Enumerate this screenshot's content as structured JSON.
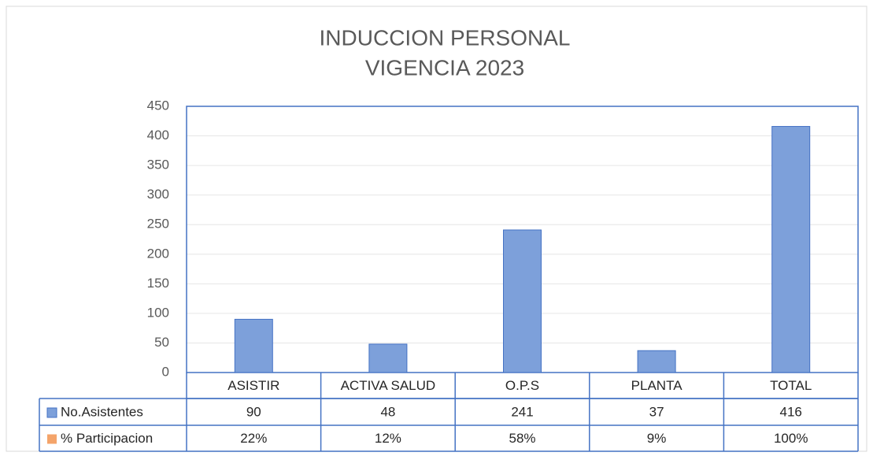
{
  "chart_data": {
    "type": "bar",
    "title": [
      "INDUCCION PERSONAL",
      "VIGENCIA 2023"
    ],
    "categories": [
      "ASISTIR",
      "ACTIVA SALUD",
      "O.P.S",
      "PLANTA",
      "TOTAL"
    ],
    "series": [
      {
        "name": "No.Asistentes",
        "color": "#7da0da",
        "values": [
          90,
          48,
          241,
          37,
          416
        ]
      },
      {
        "name": "% Participacion",
        "color": "#f4a46a",
        "values": [
          22,
          12,
          58,
          9,
          100
        ],
        "value_labels": [
          "22%",
          "12%",
          "58%",
          "9%",
          "100%"
        ]
      }
    ],
    "ylim": [
      0,
      450
    ],
    "yticks": [
      0,
      50,
      100,
      150,
      200,
      250,
      300,
      350,
      400,
      450
    ],
    "grid": true
  }
}
